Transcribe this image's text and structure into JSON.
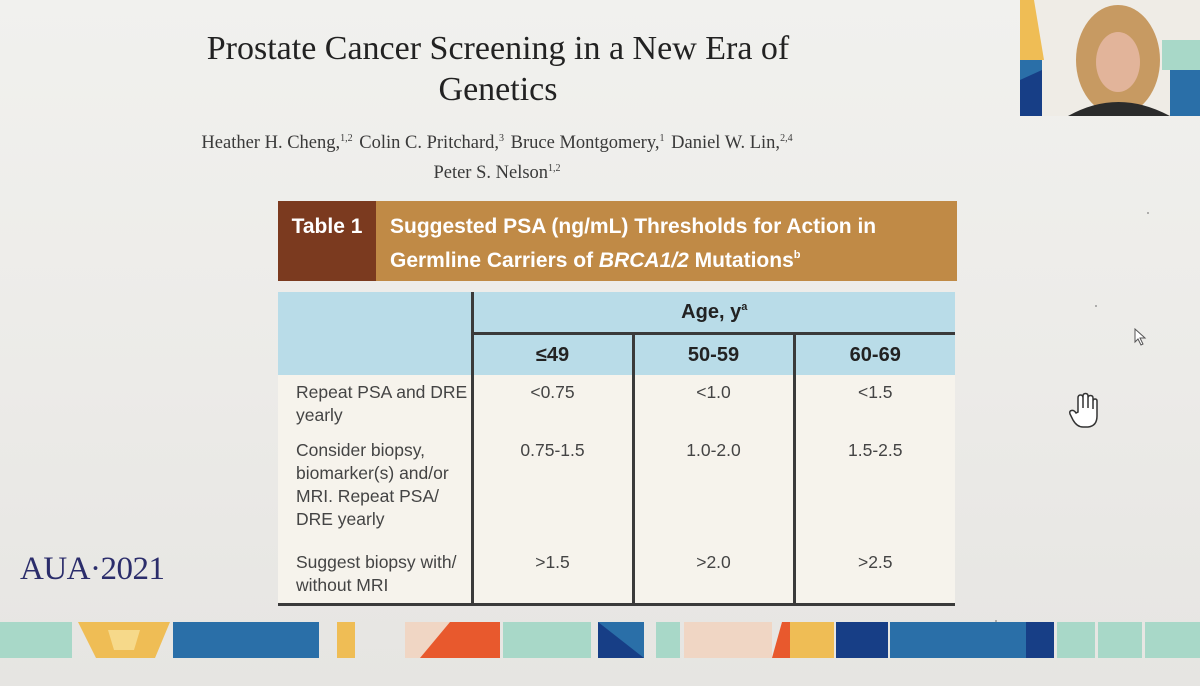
{
  "slide": {
    "title_line1": "Prostate Cancer Screening in a New Era of",
    "title_line2": "Genetics",
    "authors": [
      {
        "name": "Heather H. Cheng,",
        "sup": "1,2"
      },
      {
        "name": "Colin C. Pritchard,",
        "sup": "3"
      },
      {
        "name": "Bruce Montgomery,",
        "sup": "1"
      },
      {
        "name": "Daniel W. Lin,",
        "sup": "2,4"
      },
      {
        "name": "Peter S. Nelson",
        "sup": "1,2"
      }
    ],
    "table_label": "Table 1",
    "table_caption_line1": "Suggested PSA (ng/mL) Thresholds for Action in",
    "table_caption_line2_pre": "Germline Carriers of ",
    "table_caption_line2_italic": "BRCA1/2",
    "table_caption_line2_post": " Mutations",
    "table_caption_sup": "b",
    "age_header": "Age, y",
    "age_header_sup": "a",
    "columns": [
      "≤49",
      "50-59",
      "60-69"
    ],
    "rows": [
      {
        "label": "Repeat PSA and DRE yearly",
        "values": [
          "<0.75",
          "<1.0",
          "<1.5"
        ]
      },
      {
        "label": "Consider biopsy, biomarker(s) and/or MRI. Repeat PSA/ DRE yearly",
        "values": [
          "0.75-1.5",
          "1.0-2.0",
          "1.5-2.5"
        ]
      },
      {
        "label": "Suggest biopsy with/ without MRI",
        "values": [
          ">1.5",
          ">2.0",
          ">2.5"
        ]
      }
    ],
    "footer_logo": "AUA·2021"
  },
  "colors": {
    "table_label_bg": "#7b3a1f",
    "table_caption_bg": "#c08a46",
    "header_bg": "#b9dce8",
    "logo": "#2b2d6b"
  },
  "icons": {
    "pointer": "arrow-cursor-icon",
    "hand": "hand-cursor-icon"
  }
}
